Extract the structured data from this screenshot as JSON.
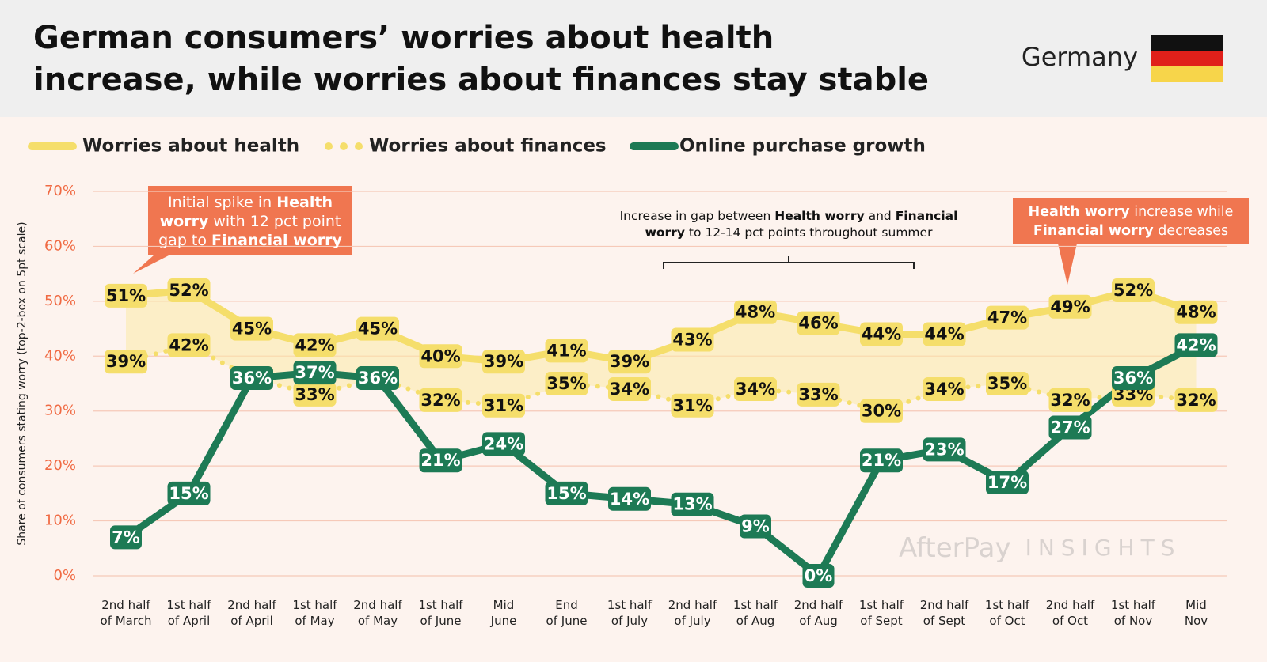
{
  "chart_data": {
    "type": "line",
    "title": "German consumers’ worries about health\nincrease, while worries about finances stay stable",
    "country": "Germany",
    "y_label": "Share of consumers stating worry (top-2-box on 5pt scale)",
    "categories": [
      "2nd half\nof March",
      "1st half\nof April",
      "2nd half\nof April",
      "1st half\nof May",
      "2nd half\nof May",
      "1st half\nof June",
      "Mid\nJune",
      "End\nof June",
      "1st half\nof July",
      "2nd half\nof July",
      "1st half\nof Aug",
      "2nd half\nof Aug",
      "1st half\nof Sept",
      "2nd half\nof Sept",
      "1st half\nof Oct",
      "2nd half\nof Oct",
      "1st half\nof Nov",
      "Mid\nNov"
    ],
    "series": [
      {
        "name": "Worries about health",
        "color": "#f5de6b",
        "style": "solid",
        "values": [
          51,
          52,
          45,
          42,
          45,
          40,
          39,
          41,
          39,
          43,
          48,
          46,
          44,
          44,
          47,
          49,
          52,
          48
        ],
        "value_labels": [
          "51%",
          "52%",
          "45%",
          "42%",
          "45%",
          "40%",
          "39%",
          "41%",
          "39%",
          "43%",
          "48%",
          "46%",
          "44%",
          "44%",
          "47%",
          "49%",
          "52%",
          "48%"
        ]
      },
      {
        "name": "Worries about finances",
        "color": "#f5de6b",
        "style": "dotted",
        "values": [
          39,
          42,
          36,
          33,
          36,
          32,
          31,
          35,
          34,
          31,
          34,
          33,
          30,
          34,
          35,
          32,
          33,
          32
        ],
        "value_labels": [
          "39%",
          "42%",
          "36%",
          "33%",
          "36%",
          "32%",
          "31%",
          "35%",
          "34%",
          "31%",
          "34%",
          "33%",
          "30%",
          "34%",
          "35%",
          "32%",
          "33%",
          "32%"
        ]
      },
      {
        "name": "Online purchase growth",
        "color": "#1d7a55",
        "style": "solid",
        "values": [
          7,
          15,
          36,
          37,
          36,
          21,
          24,
          15,
          14,
          13,
          9,
          0,
          21,
          23,
          17,
          27,
          36,
          42
        ],
        "value_labels": [
          "7%",
          "15%",
          "36%",
          "37%",
          "36%",
          "21%",
          "24%",
          "15%",
          "14%",
          "13%",
          "9%",
          "0%",
          "21%",
          "23%",
          "17%",
          "27%",
          "36%",
          "42%"
        ]
      }
    ],
    "ylim": [
      0,
      70
    ],
    "yticks": [
      {
        "value": 0,
        "label": "0%"
      },
      {
        "value": 10,
        "label": "10%"
      },
      {
        "value": 20,
        "label": "20%"
      },
      {
        "value": 30,
        "label": "30%"
      },
      {
        "value": 40,
        "label": "40%"
      },
      {
        "value": 50,
        "label": "50%"
      },
      {
        "value": 60,
        "label": "60%"
      },
      {
        "value": 70,
        "label": "70%"
      }
    ],
    "grid": true,
    "annotations": [
      {
        "lines": [
          [
            {
              "text": "Initial spike in "
            },
            {
              "text": "Health",
              "bold": true
            }
          ],
          [
            {
              "text": "worry",
              "bold": true
            },
            {
              "text": " with 12 pct point"
            }
          ],
          [
            {
              "text": "gap to "
            },
            {
              "text": "Financial worry",
              "bold": true
            }
          ]
        ]
      },
      {
        "lines": [
          [
            {
              "text": "Increase in gap between "
            },
            {
              "text": "Health worry",
              "bold": true
            },
            {
              "text": " and "
            },
            {
              "text": "Financial",
              "bold": true
            }
          ],
          [
            {
              "text": "worry",
              "bold": true
            },
            {
              "text": " to 12-14 pct points throughout summer"
            }
          ]
        ]
      },
      {
        "lines": [
          [
            {
              "text": "Health worry",
              "bold": true
            },
            {
              "text": " increase while"
            }
          ],
          [
            {
              "text": "Financial worry",
              "bold": true
            },
            {
              "text": " decreases"
            }
          ]
        ]
      }
    ],
    "watermark": [
      "AfterPay",
      "INSIGHTS"
    ]
  }
}
